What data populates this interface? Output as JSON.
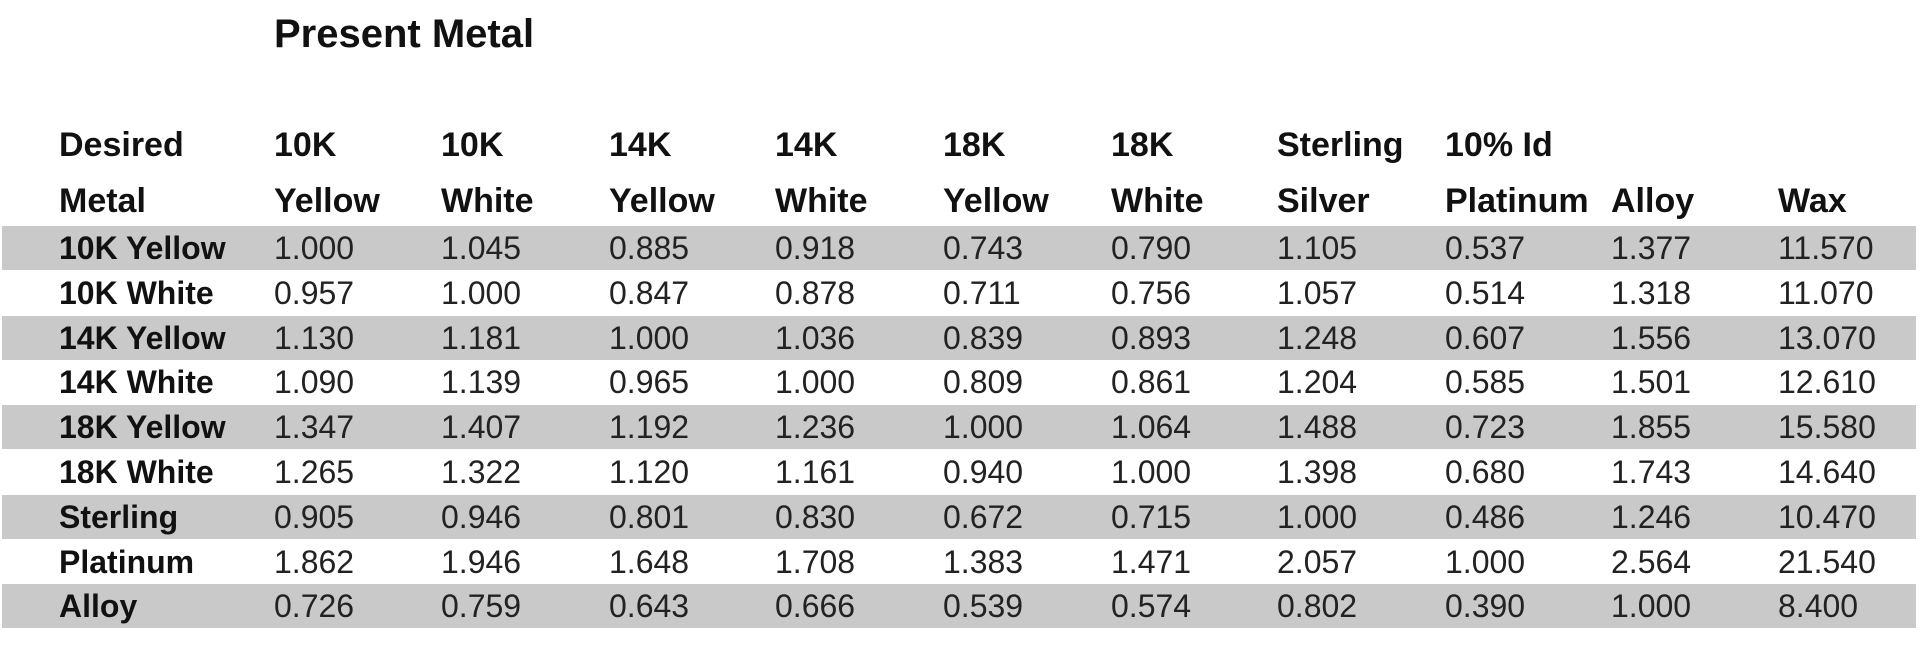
{
  "title": "Present Metal",
  "table": {
    "columns": [
      {
        "lines": [
          "Desired",
          "Metal"
        ]
      },
      {
        "lines": [
          "10K",
          "Yellow"
        ]
      },
      {
        "lines": [
          "10K",
          "White"
        ]
      },
      {
        "lines": [
          "14K",
          "Yellow"
        ]
      },
      {
        "lines": [
          "14K",
          "White"
        ]
      },
      {
        "lines": [
          "18K",
          "Yellow"
        ]
      },
      {
        "lines": [
          "18K",
          "White"
        ]
      },
      {
        "lines": [
          "Sterling",
          "Silver"
        ]
      },
      {
        "lines": [
          "10% Id",
          "Platinum"
        ]
      },
      {
        "lines": [
          "Alloy"
        ]
      },
      {
        "lines": [
          "Wax"
        ]
      }
    ],
    "rows": [
      [
        "10K Yellow",
        "1.000",
        "1.045",
        "0.885",
        "0.918",
        "0.743",
        "0.790",
        "1.105",
        "0.537",
        "1.377",
        "11.570"
      ],
      [
        "10K White",
        "0.957",
        "1.000",
        "0.847",
        "0.878",
        "0.711",
        "0.756",
        "1.057",
        "0.514",
        "1.318",
        "11.070"
      ],
      [
        "14K Yellow",
        "1.130",
        "1.181",
        "1.000",
        "1.036",
        "0.839",
        "0.893",
        "1.248",
        "0.607",
        "1.556",
        "13.070"
      ],
      [
        "14K White",
        "1.090",
        "1.139",
        "0.965",
        "1.000",
        "0.809",
        "0.861",
        "1.204",
        "0.585",
        "1.501",
        "12.610"
      ],
      [
        "18K Yellow",
        "1.347",
        "1.407",
        "1.192",
        "1.236",
        "1.000",
        "1.064",
        "1.488",
        "0.723",
        "1.855",
        "15.580"
      ],
      [
        "18K White",
        "1.265",
        "1.322",
        "1.120",
        "1.161",
        "0.940",
        "1.000",
        "1.398",
        "0.680",
        "1.743",
        "14.640"
      ],
      [
        "Sterling",
        "0.905",
        "0.946",
        "0.801",
        "0.830",
        "0.672",
        "0.715",
        "1.000",
        "0.486",
        "1.246",
        "10.470"
      ],
      [
        "Platinum",
        "1.862",
        "1.946",
        "1.648",
        "1.708",
        "1.383",
        "1.471",
        "2.057",
        "1.000",
        "2.564",
        "21.540"
      ],
      [
        "Alloy",
        "0.726",
        "0.759",
        "0.643",
        "0.666",
        "0.539",
        "0.574",
        "0.802",
        "0.390",
        "1.000",
        "8.400"
      ]
    ]
  }
}
